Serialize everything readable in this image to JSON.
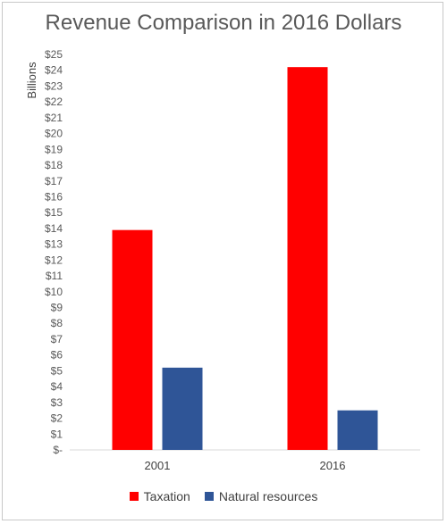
{
  "chart_data": {
    "type": "bar",
    "title": "Revenue Comparison in 2016 Dollars",
    "xlabel": "",
    "ylabel": "Billions",
    "categories": [
      "2001",
      "2016"
    ],
    "series": [
      {
        "name": "Taxation",
        "color": "#ff0000",
        "values": [
          13.9,
          24.2
        ]
      },
      {
        "name": "Natural resources",
        "color": "#2f5597",
        "values": [
          5.2,
          2.5
        ]
      }
    ],
    "ylim": [
      0,
      25
    ],
    "y_ticks": [
      0,
      1,
      2,
      3,
      4,
      5,
      6,
      7,
      8,
      9,
      10,
      11,
      12,
      13,
      14,
      15,
      16,
      17,
      18,
      19,
      20,
      21,
      22,
      23,
      24,
      25
    ],
    "y_tick_labels": [
      "$-",
      "$1",
      "$2",
      "$3",
      "$4",
      "$5",
      "$6",
      "$7",
      "$8",
      "$9",
      "$10",
      "$11",
      "$12",
      "$13",
      "$14",
      "$15",
      "$16",
      "$17",
      "$18",
      "$19",
      "$20",
      "$21",
      "$22",
      "$23",
      "$24",
      "$25"
    ],
    "grid": false,
    "legend_position": "bottom"
  }
}
